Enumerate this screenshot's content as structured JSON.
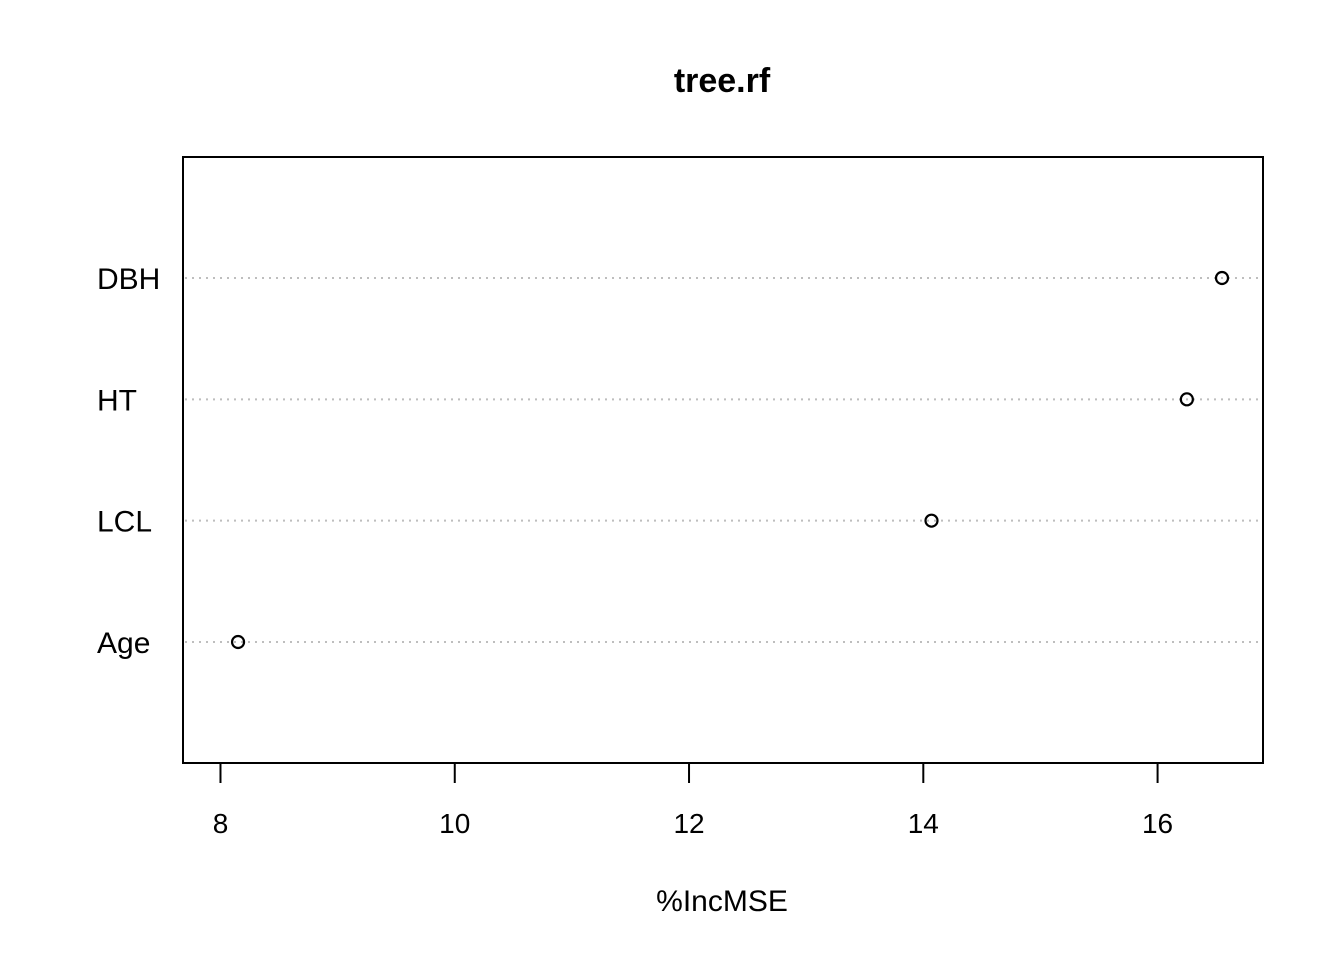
{
  "chart_data": {
    "type": "scatter",
    "title": "tree.rf",
    "xlabel": "%IncMSE",
    "ylabel": "",
    "categories": [
      "DBH",
      "HT",
      "LCL",
      "Age"
    ],
    "values": [
      16.55,
      16.25,
      14.07,
      8.15
    ],
    "xlim": [
      7.68,
      16.9
    ],
    "xticks": [
      8,
      10,
      12,
      14,
      16
    ],
    "xtick_labels": [
      "8",
      "10",
      "12",
      "14",
      "16"
    ],
    "grid": "horizontal dotted lines at each category",
    "marker": "open circle",
    "colors": {
      "points": "#000000",
      "grid": "#bebebe",
      "frame": "#000000"
    }
  }
}
